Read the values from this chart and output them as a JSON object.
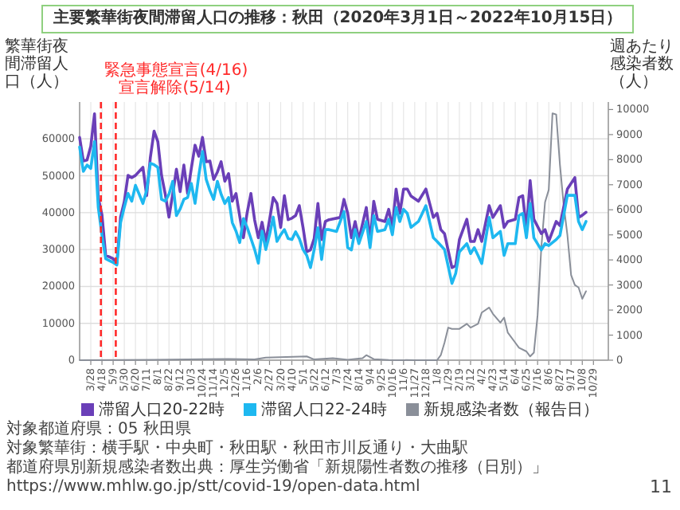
{
  "chart_data": {
    "type": "line",
    "title": "主要繁華街夜間滞留人口の推移：秋田（2020年3月1日～2022年10月15日）",
    "ylabel": "繁華街夜間滞留人口（人）",
    "y2label": "週あたり感染者数（人）",
    "xlim": [
      "2020-03-07",
      "2022-11-26"
    ],
    "ylim": [
      0,
      70000
    ],
    "y2lim": [
      0,
      10300
    ],
    "yticks": [
      0,
      10000,
      20000,
      30000,
      40000,
      50000,
      60000
    ],
    "y2ticks": [
      0,
      1000,
      2000,
      3000,
      4000,
      5000,
      6000,
      7000,
      8000,
      9000,
      10000
    ],
    "xticks": [
      {
        "value": "2020-03-28",
        "label": "3/28"
      },
      {
        "value": "2020-04-18",
        "label": "4/18"
      },
      {
        "value": "2020-05-09",
        "label": "5/9"
      },
      {
        "value": "2020-05-30",
        "label": "5/30"
      },
      {
        "value": "2020-06-20",
        "label": "6/20"
      },
      {
        "value": "2020-07-11",
        "label": "7/11"
      },
      {
        "value": "2020-08-01",
        "label": "8/1"
      },
      {
        "value": "2020-08-22",
        "label": "8/22"
      },
      {
        "value": "2020-09-12",
        "label": "9/12"
      },
      {
        "value": "2020-10-03",
        "label": "10/3"
      },
      {
        "value": "2020-10-24",
        "label": "10/24"
      },
      {
        "value": "2020-11-14",
        "label": "11/14"
      },
      {
        "value": "2020-12-05",
        "label": "12/5"
      },
      {
        "value": "2020-12-26",
        "label": "12/26"
      },
      {
        "value": "2021-01-16",
        "label": "1/16"
      },
      {
        "value": "2021-02-06",
        "label": "2/6"
      },
      {
        "value": "2021-02-27",
        "label": "2/27"
      },
      {
        "value": "2021-03-20",
        "label": "3/20"
      },
      {
        "value": "2021-04-10",
        "label": "4/10"
      },
      {
        "value": "2021-05-01",
        "label": "5/1"
      },
      {
        "value": "2021-05-22",
        "label": "5/22"
      },
      {
        "value": "2021-06-12",
        "label": "6/12"
      },
      {
        "value": "2021-07-03",
        "label": "7/3"
      },
      {
        "value": "2021-07-24",
        "label": "7/24"
      },
      {
        "value": "2021-08-14",
        "label": "8/14"
      },
      {
        "value": "2021-09-04",
        "label": "9/4"
      },
      {
        "value": "2021-09-25",
        "label": "9/25"
      },
      {
        "value": "2021-10-16",
        "label": "10/16"
      },
      {
        "value": "2021-11-06",
        "label": "11/6"
      },
      {
        "value": "2021-11-27",
        "label": "11/27"
      },
      {
        "value": "2021-12-18",
        "label": "12/18"
      },
      {
        "value": "2022-01-08",
        "label": "1/8"
      },
      {
        "value": "2022-01-29",
        "label": "1/29"
      },
      {
        "value": "2022-02-19",
        "label": "2/19"
      },
      {
        "value": "2022-03-12",
        "label": "3/12"
      },
      {
        "value": "2022-04-02",
        "label": "4/2"
      },
      {
        "value": "2022-04-23",
        "label": "4/23"
      },
      {
        "value": "2022-05-14",
        "label": "5/14"
      },
      {
        "value": "2022-06-04",
        "label": "6/4"
      },
      {
        "value": "2022-06-25",
        "label": "6/25"
      },
      {
        "value": "2022-07-16",
        "label": "7/16"
      },
      {
        "value": "2022-08-06",
        "label": "8/6"
      },
      {
        "value": "2022-08-27",
        "label": "8/27"
      },
      {
        "value": "2022-09-17",
        "label": "9/17"
      },
      {
        "value": "2022-10-08",
        "label": "10/8"
      },
      {
        "value": "2022-10-29",
        "label": "10/29"
      }
    ],
    "grid": true,
    "legend": "bottom",
    "marker": "none",
    "ref_lines": [
      {
        "axis": "x",
        "value": "2020-04-16",
        "label": "緊急事態宣言(4/16)",
        "color": "#ff2a2a",
        "line_style": "dashed"
      },
      {
        "axis": "x",
        "value": "2020-05-14",
        "label": "宣言解除(5/14)",
        "color": "#ff2a2a",
        "line_style": "dashed"
      }
    ],
    "series": [
      {
        "name": "滞留人口20-22時",
        "color": "#6a3fb8",
        "x": [
          "2020-03-07",
          "2020-03-14",
          "2020-03-21",
          "2020-03-28",
          "2020-04-04",
          "2020-04-11",
          "2020-04-18",
          "2020-04-25",
          "2020-05-02",
          "2020-05-09",
          "2020-05-16",
          "2020-05-23",
          "2020-05-30",
          "2020-06-06",
          "2020-06-13",
          "2020-06-20",
          "2020-06-27",
          "2020-07-04",
          "2020-07-11",
          "2020-07-18",
          "2020-07-25",
          "2020-08-01",
          "2020-08-08",
          "2020-08-15",
          "2020-08-22",
          "2020-08-29",
          "2020-09-05",
          "2020-09-12",
          "2020-09-19",
          "2020-09-26",
          "2020-10-03",
          "2020-10-10",
          "2020-10-17",
          "2020-10-24",
          "2020-10-31",
          "2020-11-07",
          "2020-11-14",
          "2020-11-21",
          "2020-11-28",
          "2020-12-05",
          "2020-12-12",
          "2020-12-19",
          "2020-12-26",
          "2021-01-02",
          "2021-01-09",
          "2021-01-16",
          "2021-01-23",
          "2021-01-30",
          "2021-02-06",
          "2021-02-13",
          "2021-02-20",
          "2021-02-27",
          "2021-03-06",
          "2021-03-13",
          "2021-03-20",
          "2021-03-27",
          "2021-04-03",
          "2021-04-10",
          "2021-04-17",
          "2021-04-24",
          "2021-05-01",
          "2021-05-08",
          "2021-05-15",
          "2021-05-22",
          "2021-05-29",
          "2021-06-05",
          "2021-06-12",
          "2021-06-19",
          "2021-07-10",
          "2021-07-17",
          "2021-07-24",
          "2021-07-31",
          "2021-08-07",
          "2021-08-14",
          "2021-08-28",
          "2021-09-04",
          "2021-09-11",
          "2021-09-18",
          "2021-10-02",
          "2021-10-09",
          "2021-10-16",
          "2021-10-23",
          "2021-10-30",
          "2021-11-06",
          "2021-11-13",
          "2021-11-20",
          "2021-12-04",
          "2021-12-18",
          "2022-01-01",
          "2022-01-08",
          "2022-01-15",
          "2022-01-22",
          "2022-02-05",
          "2022-02-12",
          "2022-02-19",
          "2022-03-05",
          "2022-03-12",
          "2022-03-19",
          "2022-03-26",
          "2022-04-02",
          "2022-04-16",
          "2022-04-23",
          "2022-05-07",
          "2022-05-14",
          "2022-05-21",
          "2022-06-04",
          "2022-06-11",
          "2022-06-18",
          "2022-06-25",
          "2022-07-02",
          "2022-07-09",
          "2022-07-23",
          "2022-07-30",
          "2022-08-06",
          "2022-08-20",
          "2022-08-27",
          "2022-09-10",
          "2022-09-24",
          "2022-10-01",
          "2022-10-08",
          "2022-10-15"
        ],
        "values": [
          60400,
          54000,
          54300,
          58000,
          66800,
          44100,
          39400,
          28400,
          28000,
          27500,
          26300,
          38800,
          43000,
          50100,
          49500,
          50100,
          51200,
          52300,
          44600,
          55000,
          62100,
          59300,
          50100,
          45000,
          38800,
          45000,
          51800,
          45700,
          52900,
          45200,
          52000,
          58300,
          55300,
          60400,
          53800,
          54000,
          49000,
          51000,
          53800,
          48500,
          50600,
          43100,
          45200,
          39000,
          33200,
          40000,
          45200,
          38000,
          33200,
          37400,
          32100,
          38000,
          44100,
          42500,
          36000,
          44600,
          38100,
          38500,
          39200,
          41900,
          36000,
          29400,
          29900,
          33000,
          42500,
          32700,
          37600,
          38100,
          38700,
          43600,
          39800,
          33200,
          37600,
          32700,
          41400,
          32200,
          43100,
          38200,
          37600,
          40900,
          36000,
          46400,
          39800,
          46400,
          46400,
          44500,
          43100,
          46400,
          38700,
          39800,
          35400,
          34300,
          25100,
          25600,
          32700,
          38200,
          32200,
          32200,
          35400,
          32200,
          41900,
          38700,
          41900,
          36000,
          37600,
          38200,
          44100,
          44600,
          35400,
          48700,
          38200,
          34300,
          35400,
          32200,
          37600,
          36500,
          46400,
          49500,
          38700,
          39300,
          40100
        ]
      },
      {
        "name": "滞留人口22-24時",
        "color": "#1eb8f0",
        "x": [
          "2020-03-07",
          "2020-03-14",
          "2020-03-21",
          "2020-03-28",
          "2020-04-04",
          "2020-04-11",
          "2020-04-18",
          "2020-04-25",
          "2020-05-02",
          "2020-05-09",
          "2020-05-16",
          "2020-05-23",
          "2020-05-30",
          "2020-06-06",
          "2020-06-13",
          "2020-06-20",
          "2020-06-27",
          "2020-07-04",
          "2020-07-11",
          "2020-07-18",
          "2020-07-25",
          "2020-08-01",
          "2020-08-08",
          "2020-08-15",
          "2020-08-22",
          "2020-08-29",
          "2020-09-05",
          "2020-09-12",
          "2020-09-19",
          "2020-09-26",
          "2020-10-03",
          "2020-10-10",
          "2020-10-17",
          "2020-10-24",
          "2020-10-31",
          "2020-11-07",
          "2020-11-14",
          "2020-11-21",
          "2020-11-28",
          "2020-12-05",
          "2020-12-12",
          "2020-12-19",
          "2020-12-26",
          "2021-01-02",
          "2021-01-09",
          "2021-01-16",
          "2021-01-23",
          "2021-01-30",
          "2021-02-06",
          "2021-02-13",
          "2021-02-20",
          "2021-02-27",
          "2021-03-06",
          "2021-03-13",
          "2021-03-20",
          "2021-03-27",
          "2021-04-03",
          "2021-04-10",
          "2021-04-17",
          "2021-04-24",
          "2021-05-01",
          "2021-05-08",
          "2021-05-15",
          "2021-05-22",
          "2021-05-29",
          "2021-06-05",
          "2021-06-12",
          "2021-06-19",
          "2021-07-03",
          "2021-07-17",
          "2021-07-24",
          "2021-07-31",
          "2021-08-07",
          "2021-08-14",
          "2021-08-28",
          "2021-09-04",
          "2021-09-11",
          "2021-09-18",
          "2021-10-02",
          "2021-10-09",
          "2021-10-16",
          "2021-10-23",
          "2021-10-30",
          "2021-11-06",
          "2021-11-13",
          "2021-11-20",
          "2021-12-04",
          "2021-12-18",
          "2022-01-01",
          "2022-01-08",
          "2022-01-15",
          "2022-01-22",
          "2022-02-05",
          "2022-02-12",
          "2022-02-19",
          "2022-03-05",
          "2022-03-12",
          "2022-03-19",
          "2022-03-26",
          "2022-04-02",
          "2022-04-16",
          "2022-04-23",
          "2022-05-07",
          "2022-05-14",
          "2022-05-21",
          "2022-06-04",
          "2022-06-11",
          "2022-06-18",
          "2022-06-25",
          "2022-07-02",
          "2022-07-09",
          "2022-07-23",
          "2022-07-30",
          "2022-08-06",
          "2022-08-20",
          "2022-08-27",
          "2022-09-10",
          "2022-09-24",
          "2022-10-01",
          "2022-10-08",
          "2022-10-15"
        ],
        "values": [
          57800,
          51200,
          52900,
          52000,
          59300,
          41500,
          33900,
          27500,
          27000,
          26500,
          25800,
          37300,
          41500,
          45200,
          43100,
          47400,
          45000,
          42500,
          46000,
          53400,
          53000,
          52300,
          43600,
          43100,
          45000,
          48500,
          39200,
          41000,
          43600,
          44100,
          47900,
          42500,
          50000,
          56600,
          49000,
          46000,
          43600,
          48500,
          45000,
          42500,
          44100,
          37300,
          35000,
          31900,
          38400,
          36000,
          33000,
          30000,
          26300,
          35000,
          30000,
          34000,
          38800,
          32200,
          34000,
          35400,
          33000,
          32700,
          34800,
          33000,
          30000,
          28400,
          25100,
          30000,
          35900,
          27300,
          35400,
          35400,
          34900,
          40300,
          30500,
          29900,
          35400,
          31600,
          37600,
          30500,
          39200,
          34900,
          35400,
          38200,
          34000,
          41400,
          37600,
          40900,
          39800,
          36000,
          37600,
          41900,
          33200,
          32200,
          31100,
          30000,
          20800,
          23500,
          29400,
          31600,
          28900,
          30500,
          28400,
          26200,
          38700,
          33200,
          34900,
          28400,
          31600,
          31600,
          39200,
          39800,
          33200,
          42500,
          33200,
          29900,
          31600,
          31100,
          32700,
          33800,
          44700,
          44700,
          37600,
          35400,
          37600
        ]
      },
      {
        "name": "新規感染者数（報告日）",
        "color": "#8a8f99",
        "axis": "y2",
        "x": [
          "2020-03-07",
          "2020-07-25",
          "2020-12-12",
          "2021-01-30",
          "2021-02-20",
          "2021-05-08",
          "2021-05-22",
          "2021-06-26",
          "2021-07-24",
          "2021-08-21",
          "2021-08-28",
          "2021-09-11",
          "2021-10-09",
          "2021-11-27",
          "2022-01-08",
          "2022-01-15",
          "2022-01-22",
          "2022-01-29",
          "2022-02-05",
          "2022-02-19",
          "2022-03-05",
          "2022-03-12",
          "2022-03-26",
          "2022-04-02",
          "2022-04-16",
          "2022-04-23",
          "2022-05-07",
          "2022-05-14",
          "2022-05-21",
          "2022-06-04",
          "2022-06-11",
          "2022-06-25",
          "2022-07-02",
          "2022-07-09",
          "2022-07-16",
          "2022-07-23",
          "2022-07-30",
          "2022-08-06",
          "2022-08-13",
          "2022-08-20",
          "2022-08-27",
          "2022-09-03",
          "2022-09-10",
          "2022-09-17",
          "2022-09-24",
          "2022-10-01",
          "2022-10-08",
          "2022-10-15"
        ],
        "values": [
          0,
          20,
          50,
          30,
          100,
          150,
          30,
          80,
          20,
          80,
          200,
          40,
          10,
          0,
          0,
          200,
          700,
          1300,
          1250,
          1250,
          1450,
          1300,
          1450,
          1900,
          2100,
          1850,
          1500,
          1700,
          1100,
          700,
          500,
          350,
          150,
          300,
          1800,
          4500,
          6300,
          6800,
          9850,
          9800,
          7800,
          6200,
          5000,
          3400,
          3000,
          2900,
          2450,
          2750
        ]
      }
    ],
    "annotations": [
      "対象都道府県：05 秋田県",
      "対象繁華街：横手駅・中央町・秋田駅・秋田市川反通り・大曲駅",
      "都道府県別新規感染者数出典：厚生労働省「新規陽性者数の推移（日別）」https://www.mhlw.go.jp/stt/covid-19/open-data.html",
      "11"
    ]
  }
}
